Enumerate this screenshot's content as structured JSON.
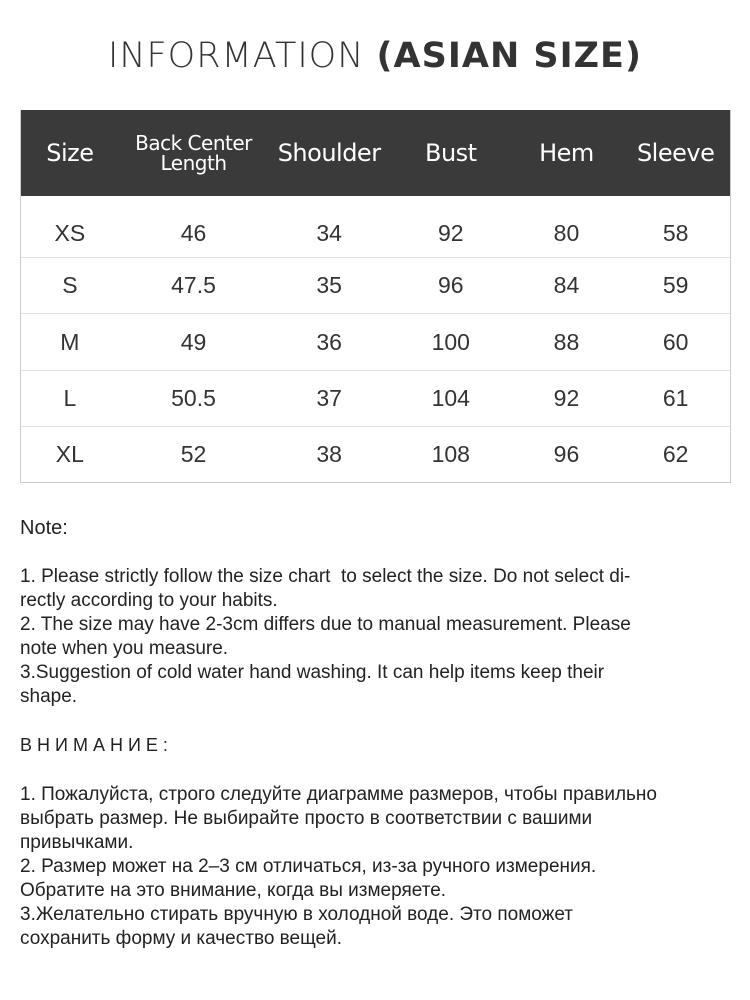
{
  "title": {
    "main": "INFORMATION",
    "bold": "(ASIAN SIZE)"
  },
  "table": {
    "headers": [
      "Size",
      "Back Center Length",
      "Shoulder",
      "Bust",
      "Hem",
      "Sleeve"
    ],
    "header_line1": "Back Center",
    "header_line2": "Length",
    "rows": [
      [
        "XS",
        "46",
        "34",
        "92",
        "80",
        "58"
      ],
      [
        "S",
        "47.5",
        "35",
        "96",
        "84",
        "59"
      ],
      [
        "M",
        "49",
        "36",
        "100",
        "88",
        "60"
      ],
      [
        "L",
        "50.5",
        "37",
        "104",
        "92",
        "61"
      ],
      [
        "XL",
        "52",
        "38",
        "108",
        "96",
        "62"
      ]
    ],
    "header_bg": "#3a3a3a"
  },
  "note": {
    "heading": "Note:",
    "lines": [
      "1. Please strictly follow the size chart  to select the size. Do not select di-",
      "rectly according to your habits.",
      "2. The size may have 2-3cm differs due to manual measurement. Please",
      "note when you measure.",
      "3.Suggestion of cold water hand washing. It can help items keep their",
      "shape."
    ]
  },
  "note_ru": {
    "heading": "В Н И М А Н И Е :",
    "lines": [
      "1. Пожалуйста, строго следуйте диаграмме размеров, чтобы правильно",
      "выбрать размер. Не выбирайте просто в соответствии с вашими",
      "привычками.",
      "2. Размер может на 2–3 см отличаться, из-за ручного измерения.",
      "Обратите на это внимание, когда вы измеряете.",
      "3.Желательно стирать вручную в холодной воде. Это поможет",
      "сохранить форму и качество вещей."
    ]
  }
}
